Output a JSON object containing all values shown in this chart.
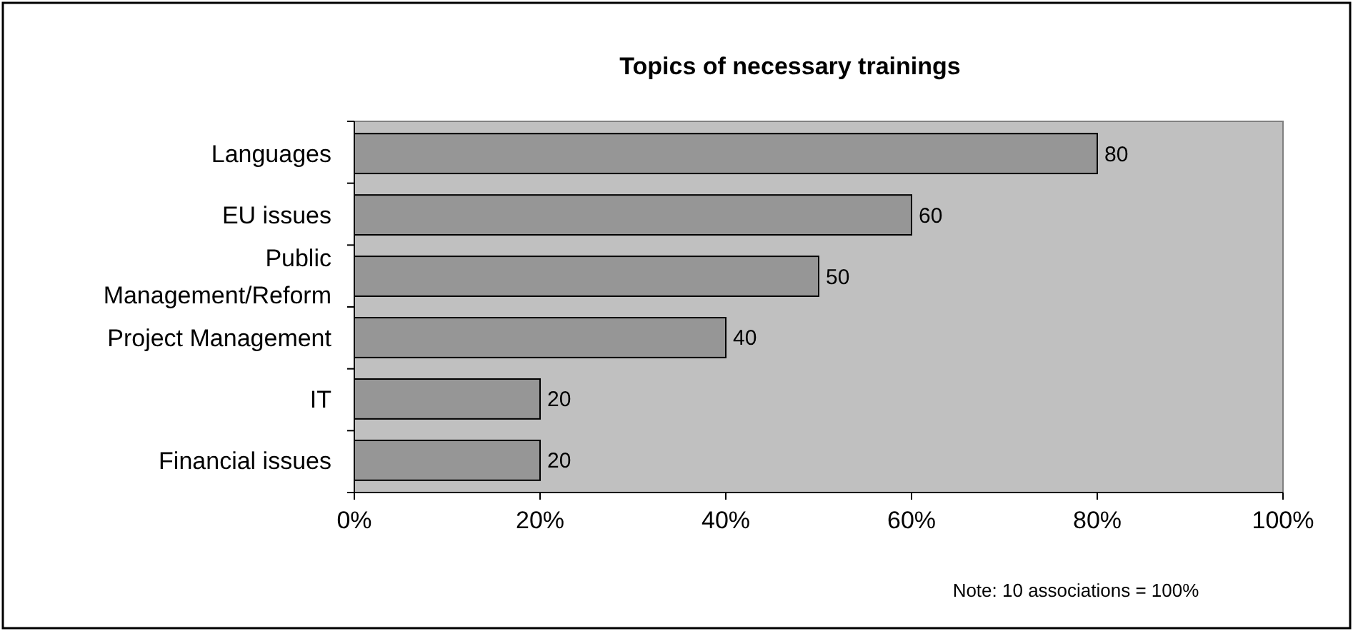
{
  "chart_data": {
    "type": "bar",
    "orientation": "horizontal",
    "title": "Topics of necessary trainings",
    "categories": [
      "Languages",
      "EU issues",
      "Public Management/Reform",
      "Project Management",
      "IT",
      "Financial issues"
    ],
    "values": [
      80,
      60,
      50,
      40,
      20,
      20
    ],
    "color": "#969696",
    "data_labels": true,
    "xlim": [
      0,
      100
    ],
    "xticks": [
      {
        "value": 0,
        "label": "0%"
      },
      {
        "value": 20,
        "label": "20%"
      },
      {
        "value": 40,
        "label": "40%"
      },
      {
        "value": 60,
        "label": "60%"
      },
      {
        "value": 80,
        "label": "80%"
      },
      {
        "value": 100,
        "label": "100%"
      }
    ],
    "annotations": [
      "Note: 10 associations = 100%"
    ]
  }
}
